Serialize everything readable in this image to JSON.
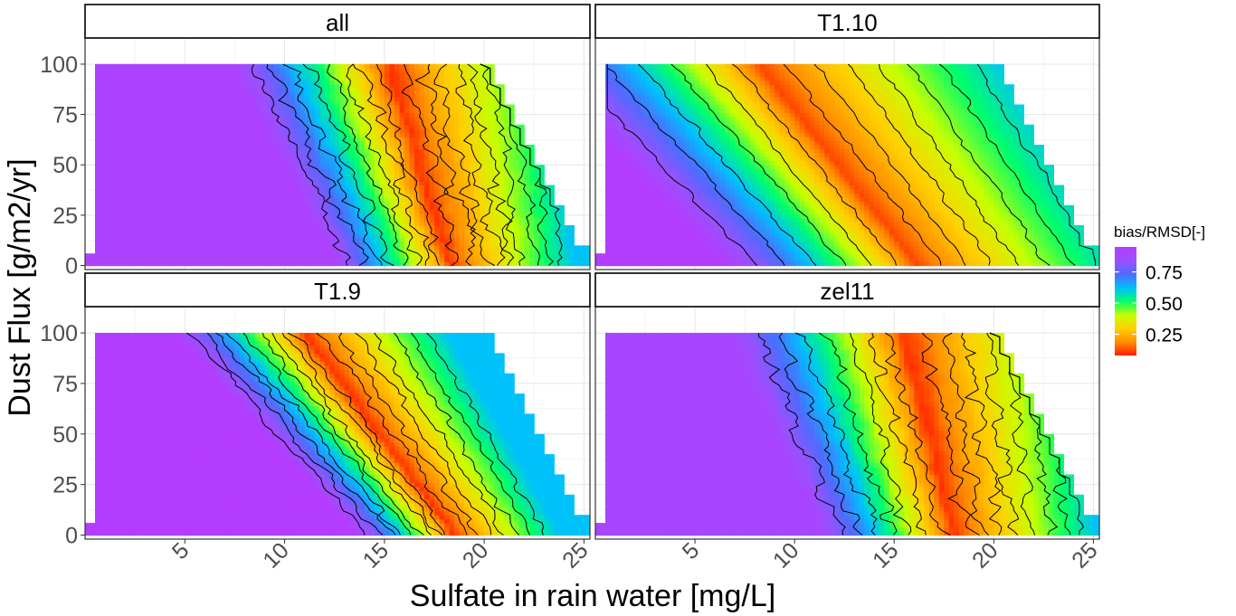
{
  "chart_data": {
    "type": "heatmap",
    "layout": "facet grid 2x2",
    "xlabel": "Sulfate in rain water [mg/L]",
    "ylabel": "Dust Flux [g/m2/yr]",
    "xlim": [
      0,
      25.3
    ],
    "ylim": [
      -2,
      113
    ],
    "x_ticks": [
      "5",
      "10",
      "15",
      "20",
      "25"
    ],
    "y_ticks": [
      "0",
      "25",
      "50",
      "75",
      "100"
    ],
    "grid": true,
    "contour_lines": true,
    "colorscale": [
      "#ff1a00",
      "#ff8c00",
      "#ffd000",
      "#c6ff00",
      "#00ff6a",
      "#00c0ff",
      "#4f6bff",
      "#9a50ff",
      "#b43cff"
    ],
    "legend": {
      "title": "bias/RMSD[-]",
      "position": "right",
      "range": [
        0.08,
        0.95
      ],
      "ticks": [
        "0.75",
        "0.50",
        "0.25"
      ],
      "tick_values": [
        0.75,
        0.5,
        0.25
      ]
    },
    "facets": [
      {
        "name": "all",
        "ridge_top": 15.2,
        "ridge_bottom": 18.3,
        "width_top": 3.6,
        "width_bottom": 2.6,
        "lines_left": 8,
        "lines_right": 9,
        "noise": 0.18,
        "max_val": 0.92,
        "min_val": 0.1
      },
      {
        "name": "T1.10",
        "ridge_top": 8.2,
        "ridge_bottom": 16.2,
        "width_top": 5.2,
        "width_bottom": 4.4,
        "lines_left": 6,
        "lines_right": 7,
        "noise": 0.08,
        "max_val": 0.95,
        "min_val": 0.12
      },
      {
        "name": "T1.9",
        "ridge_top": 11.0,
        "ridge_bottom": 18.5,
        "width_top": 3.0,
        "width_bottom": 2.2,
        "lines_left": 9,
        "lines_right": 7,
        "noise": 0.12,
        "max_val": 0.95,
        "min_val": 0.1
      },
      {
        "name": "zel11",
        "ridge_top": 15.5,
        "ridge_bottom": 18.0,
        "width_top": 4.0,
        "width_bottom": 3.0,
        "lines_left": 7,
        "lines_right": 8,
        "noise": 0.18,
        "max_val": 0.9,
        "min_val": 0.1
      }
    ]
  }
}
